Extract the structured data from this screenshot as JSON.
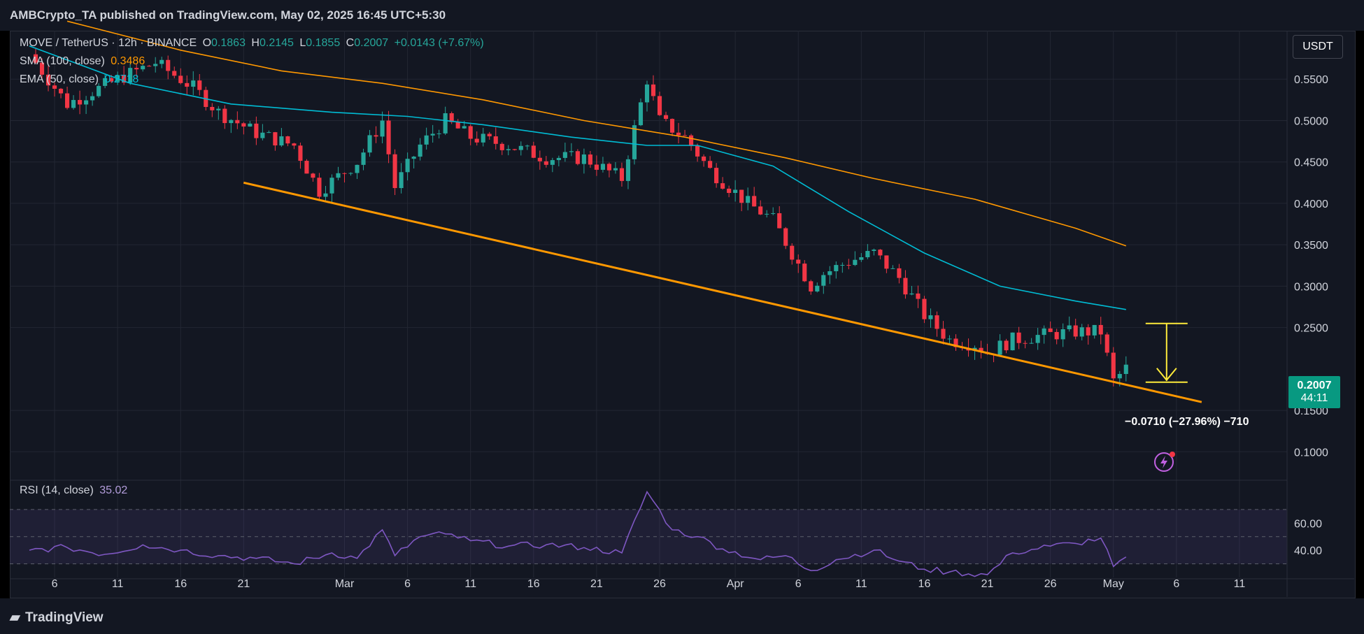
{
  "header": {
    "published": "AMBCrypto_TA published on TradingView.com, May 02, 2025 16:45 UTC+5:30"
  },
  "footer": {
    "brand": "TradingView"
  },
  "symbol": {
    "name": "MOVE / TetherUS · 12h · BINANCE",
    "o_label": "O",
    "o": "0.1863",
    "h_label": "H",
    "h": "0.2145",
    "l_label": "L",
    "l": "0.1855",
    "c_label": "C",
    "c": "0.2007",
    "change": "+0.0143 (+7.67%)"
  },
  "indicators": {
    "sma": {
      "label": "SMA (100, close)",
      "value": "0.3486"
    },
    "ema": {
      "label": "EMA (50, close)",
      "value": "0.2718"
    },
    "rsi": {
      "label": "RSI (14, close)",
      "value": "35.02"
    }
  },
  "price_axis": {
    "unit": "USDT"
  },
  "last_price": {
    "value": "0.2007",
    "countdown": "44:11"
  },
  "measurement": {
    "label": "−0.0710 (−27.96%) −710"
  },
  "colors": {
    "up": "#26a69a",
    "down": "#f23645",
    "sma": "#ff9800",
    "ema": "#00bcd4",
    "rsi": "#7e57c2",
    "trendline": "#ff9800",
    "measure": "#ffeb3b"
  },
  "chart_data": [
    {
      "type": "candlestick",
      "ylim": [
        0.08,
        0.6
      ],
      "y_ticks": [
        "0.5500",
        "0.5000",
        "0.4500",
        "0.4000",
        "0.3500",
        "0.3000",
        "0.2500",
        "0.1500",
        "0.1000"
      ],
      "x_ticks": [
        {
          "label": "6",
          "date": "2025-02-06"
        },
        {
          "label": "11",
          "date": "2025-02-11"
        },
        {
          "label": "16",
          "date": "2025-02-16"
        },
        {
          "label": "21",
          "date": "2025-02-21"
        },
        {
          "label": "Mar",
          "date": "2025-03-01"
        },
        {
          "label": "6",
          "date": "2025-03-06"
        },
        {
          "label": "11",
          "date": "2025-03-11"
        },
        {
          "label": "16",
          "date": "2025-03-16"
        },
        {
          "label": "21",
          "date": "2025-03-21"
        },
        {
          "label": "26",
          "date": "2025-03-26"
        },
        {
          "label": "Apr",
          "date": "2025-04-01"
        },
        {
          "label": "6",
          "date": "2025-04-06"
        },
        {
          "label": "11",
          "date": "2025-04-11"
        },
        {
          "label": "16",
          "date": "2025-04-16"
        },
        {
          "label": "21",
          "date": "2025-04-21"
        },
        {
          "label": "26",
          "date": "2025-04-26"
        },
        {
          "label": "May",
          "date": "2025-05-01"
        },
        {
          "label": "6",
          "date": "2025-05-06"
        },
        {
          "label": "11",
          "date": "2025-05-11"
        }
      ],
      "close_path": [
        [
          "2025-02-04",
          0.58
        ],
        [
          "2025-02-07",
          0.52
        ],
        [
          "2025-02-11",
          0.55
        ],
        [
          "2025-02-14",
          0.57
        ],
        [
          "2025-02-17",
          0.54
        ],
        [
          "2025-02-19",
          0.51
        ],
        [
          "2025-02-22",
          0.485
        ],
        [
          "2025-02-25",
          0.47
        ],
        [
          "2025-02-27",
          0.415
        ],
        [
          "2025-03-02",
          0.45
        ],
        [
          "2025-03-04",
          0.5
        ],
        [
          "2025-03-05",
          0.42
        ],
        [
          "2025-03-07",
          0.47
        ],
        [
          "2025-03-09",
          0.5
        ],
        [
          "2025-03-11",
          0.48
        ],
        [
          "2025-03-14",
          0.47
        ],
        [
          "2025-03-17",
          0.455
        ],
        [
          "2025-03-20",
          0.455
        ],
        [
          "2025-03-23",
          0.43
        ],
        [
          "2025-03-25",
          0.55
        ],
        [
          "2025-03-26",
          0.5
        ],
        [
          "2025-03-28",
          0.48
        ],
        [
          "2025-03-30",
          0.44
        ],
        [
          "2025-04-02",
          0.4
        ],
        [
          "2025-04-04",
          0.38
        ],
        [
          "2025-04-07",
          0.3
        ],
        [
          "2025-04-08",
          0.315
        ],
        [
          "2025-04-10",
          0.33
        ],
        [
          "2025-04-12",
          0.34
        ],
        [
          "2025-04-14",
          0.31
        ],
        [
          "2025-04-16",
          0.265
        ],
        [
          "2025-04-18",
          0.235
        ],
        [
          "2025-04-20",
          0.23
        ],
        [
          "2025-04-21",
          0.22
        ],
        [
          "2025-04-23",
          0.235
        ],
        [
          "2025-04-25",
          0.24
        ],
        [
          "2025-04-28",
          0.245
        ],
        [
          "2025-04-30",
          0.245
        ],
        [
          "2025-05-01",
          0.185
        ],
        [
          "2025-05-02",
          0.2007
        ]
      ],
      "sma_100": [
        [
          "2025-02-07",
          0.62
        ],
        [
          "2025-02-16",
          0.585
        ],
        [
          "2025-02-24",
          0.56
        ],
        [
          "2025-03-04",
          0.545
        ],
        [
          "2025-03-12",
          0.525
        ],
        [
          "2025-03-20",
          0.5
        ],
        [
          "2025-03-28",
          0.48
        ],
        [
          "2025-04-05",
          0.455
        ],
        [
          "2025-04-12",
          0.43
        ],
        [
          "2025-04-20",
          0.405
        ],
        [
          "2025-04-28",
          0.37
        ],
        [
          "2025-05-02",
          0.3486
        ]
      ],
      "ema_50": [
        [
          "2025-02-04",
          0.59
        ],
        [
          "2025-02-12",
          0.545
        ],
        [
          "2025-02-20",
          0.52
        ],
        [
          "2025-02-28",
          0.51
        ],
        [
          "2025-03-06",
          0.505
        ],
        [
          "2025-03-12",
          0.495
        ],
        [
          "2025-03-19",
          0.48
        ],
        [
          "2025-03-25",
          0.47
        ],
        [
          "2025-03-29",
          0.47
        ],
        [
          "2025-04-04",
          0.445
        ],
        [
          "2025-04-10",
          0.39
        ],
        [
          "2025-04-16",
          0.34
        ],
        [
          "2025-04-22",
          0.3
        ],
        [
          "2025-04-28",
          0.282
        ],
        [
          "2025-05-02",
          0.2718
        ]
      ],
      "trendline": [
        [
          "2025-02-21",
          0.425
        ],
        [
          "2025-05-08",
          0.16
        ]
      ],
      "measure": {
        "from_date": "2025-05-03",
        "top": 0.255,
        "bottom": 0.184
      }
    },
    {
      "type": "line",
      "name": "RSI (14, close)",
      "ylim": [
        20,
        90
      ],
      "y_ticks": [
        "60.00",
        "40.00"
      ],
      "bands": [
        30,
        50,
        70
      ],
      "values": [
        [
          "2025-02-04",
          40
        ],
        [
          "2025-02-07",
          42
        ],
        [
          "2025-02-10",
          37
        ],
        [
          "2025-02-13",
          44
        ],
        [
          "2025-02-16",
          40
        ],
        [
          "2025-02-19",
          36
        ],
        [
          "2025-02-22",
          34
        ],
        [
          "2025-02-25",
          30
        ],
        [
          "2025-02-28",
          38
        ],
        [
          "2025-03-02",
          34
        ],
        [
          "2025-03-04",
          55
        ],
        [
          "2025-03-05",
          36
        ],
        [
          "2025-03-07",
          50
        ],
        [
          "2025-03-09",
          52
        ],
        [
          "2025-03-11",
          47
        ],
        [
          "2025-03-14",
          43
        ],
        [
          "2025-03-17",
          44
        ],
        [
          "2025-03-20",
          42
        ],
        [
          "2025-03-23",
          38
        ],
        [
          "2025-03-25",
          83
        ],
        [
          "2025-03-27",
          55
        ],
        [
          "2025-03-29",
          50
        ],
        [
          "2025-03-31",
          41
        ],
        [
          "2025-04-03",
          33
        ],
        [
          "2025-04-05",
          36
        ],
        [
          "2025-04-07",
          25
        ],
        [
          "2025-04-09",
          33
        ],
        [
          "2025-04-12",
          40
        ],
        [
          "2025-04-14",
          32
        ],
        [
          "2025-04-16",
          26
        ],
        [
          "2025-04-18",
          24
        ],
        [
          "2025-04-21",
          22
        ],
        [
          "2025-04-23",
          38
        ],
        [
          "2025-04-26",
          43
        ],
        [
          "2025-04-28",
          45
        ],
        [
          "2025-04-30",
          49
        ],
        [
          "2025-05-01",
          28
        ],
        [
          "2025-05-02",
          35.02
        ]
      ]
    }
  ]
}
